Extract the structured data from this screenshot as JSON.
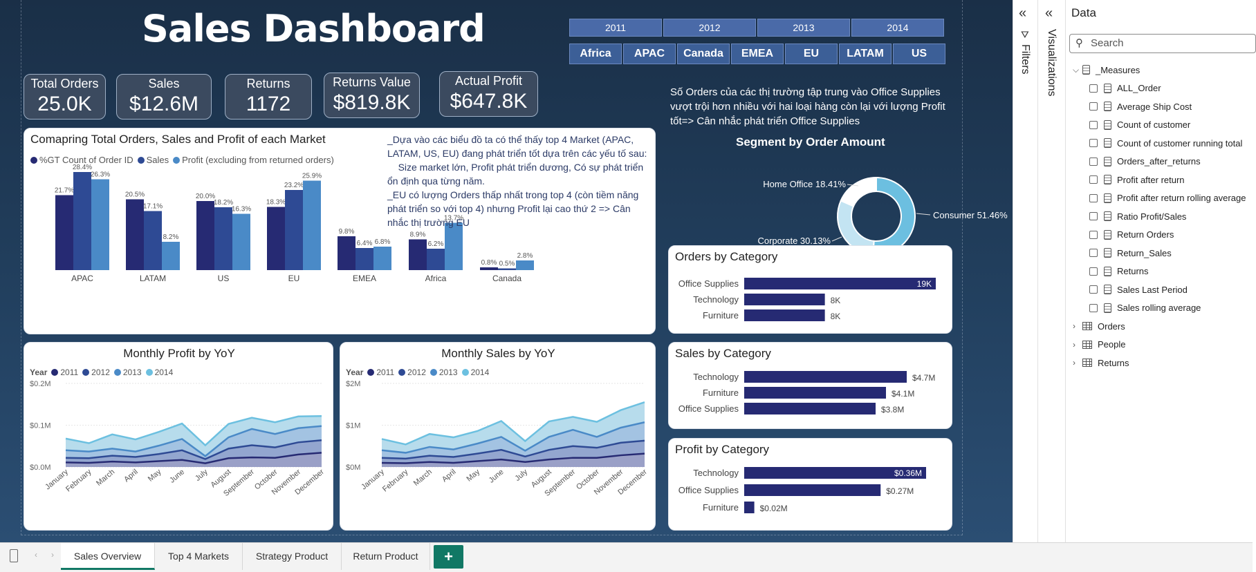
{
  "header": {
    "title": "Sales Dashboard"
  },
  "years": [
    "2011",
    "2012",
    "2013",
    "2014"
  ],
  "markets": [
    "Africa",
    "APAC",
    "Canada",
    "EMEA",
    "EU",
    "LATAM",
    "US"
  ],
  "kpis": [
    {
      "label": "Total Orders",
      "value": "25.0K"
    },
    {
      "label": "Sales",
      "value": "$12.6M"
    },
    {
      "label": "Returns",
      "value": "1172"
    },
    {
      "label": "Returns Value",
      "value": "$819.8K"
    },
    {
      "label": "Actual Profit",
      "value": "$647.8K"
    }
  ],
  "market_chart": {
    "title": "Comapring Total Orders, Sales and Profit of each Market",
    "note": "_Dựa vào các biểu đồ ta có thể thấy top 4 Market (APAC, LATAM, US, EU) đang phát triển tốt dựa trên các yếu tố sau:\n    Size market lớn, Profit phát triển dương, Có sự phát triển ổn định qua từng năm.\n_EU có lượng Orders thấp nhất trong top 4 (còn tiềm năng phát triển so với top 4) nhưng Profit lại cao thứ 2 => Cân nhắc thị trường EU"
  },
  "insight": "Số Orders của các thị trường tập trung vào Office Supplies vượt trội hơn nhiều với hai loại hàng còn lại với lượng Profit tốt=> Cân nhắc phát triển Office Supplies",
  "segment_title": "Segment by Order Amount",
  "profit_chart": {
    "title": "Monthly Profit by YoY",
    "legend_label": "Year"
  },
  "sales_chart": {
    "title": "Monthly Sales by YoY",
    "legend_label": "Year"
  },
  "orders_cat": {
    "title": "Orders by Category"
  },
  "sales_cat": {
    "title": "Sales by Category"
  },
  "profit_cat": {
    "title": "Profit by Category"
  },
  "colors": {
    "navy": "#262a73",
    "blue": "#2e4a94",
    "light": "#4a8ac7",
    "sky": "#6cc0e0"
  },
  "panes": {
    "filters": "Filters",
    "visualizations": "Visualizations",
    "data": "Data",
    "search_placeholder": "Search"
  },
  "data_tree": {
    "measures_table": "_Measures",
    "measures": [
      "ALL_Order",
      "Average Ship Cost",
      "Count of customer",
      "Count of customer running total",
      "Orders_after_returns",
      "Profit after return",
      "Profit after return rolling average",
      "Ratio Profit/Sales",
      "Return Orders",
      "Return_Sales",
      "Returns",
      "Sales Last Period",
      "Sales rolling average"
    ],
    "tables": [
      "Orders",
      "People",
      "Returns"
    ]
  },
  "tabs": [
    "Sales Overview",
    "Top 4 Markets",
    "Strategy Product",
    "Return Product"
  ],
  "add_tab": "+",
  "chart_data": [
    {
      "type": "bar",
      "categories": [
        "APAC",
        "LATAM",
        "US",
        "EU",
        "EMEA",
        "Africa",
        "Canada"
      ],
      "series": [
        {
          "name": "%GT Count of Order ID",
          "values": [
            21.7,
            20.5,
            20.0,
            18.3,
            9.8,
            8.9,
            0.8
          ],
          "labels": [
            "21.7%",
            "20.5%",
            "20.0%",
            "18.3%",
            "9.8%",
            "8.9%",
            "0.8%"
          ]
        },
        {
          "name": "Sales",
          "values": [
            28.4,
            17.1,
            18.2,
            23.2,
            6.4,
            6.2,
            0.5
          ],
          "labels": [
            "28.4%",
            "17.1%",
            "18.2%",
            "23.2%",
            "6.4%",
            "6.2%",
            "0.5%"
          ]
        },
        {
          "name": "Profit (excluding from returned orders)",
          "values": [
            26.3,
            8.2,
            16.3,
            25.9,
            6.8,
            13.7,
            2.8
          ],
          "labels": [
            "26.3%",
            "8.2%",
            "16.3%",
            "25.9%",
            "6.8%",
            "13.7%",
            "2.8%"
          ]
        }
      ]
    },
    {
      "type": "pie",
      "title": "Segment by Order Amount",
      "slices": [
        {
          "label": "Consumer",
          "value": 51.46,
          "text": "Consumer 51.46%"
        },
        {
          "label": "Corporate",
          "value": 30.13,
          "text": "Corporate 30.13%"
        },
        {
          "label": "Home Office",
          "value": 18.41,
          "text": "Home Office 18.41%"
        }
      ]
    },
    {
      "type": "area",
      "title": "Monthly Profit by YoY",
      "categories": [
        "January",
        "February",
        "March",
        "April",
        "May",
        "June",
        "July",
        "August",
        "September",
        "October",
        "November",
        "December"
      ],
      "ytick_labels": [
        "$0.0M",
        "$0.1M",
        "$0.2M"
      ],
      "ylim": [
        0,
        0.2
      ],
      "series": [
        {
          "name": "2011",
          "values": [
            0.011,
            0.01,
            0.013,
            0.011,
            0.014,
            0.017,
            0.009,
            0.021,
            0.023,
            0.022,
            0.03,
            0.034
          ]
        },
        {
          "name": "2012",
          "values": [
            0.011,
            0.011,
            0.014,
            0.013,
            0.017,
            0.023,
            0.01,
            0.023,
            0.029,
            0.025,
            0.029,
            0.03
          ]
        },
        {
          "name": "2013",
          "values": [
            0.018,
            0.016,
            0.017,
            0.013,
            0.02,
            0.027,
            0.007,
            0.027,
            0.039,
            0.032,
            0.034,
            0.034
          ]
        },
        {
          "name": "2014",
          "values": [
            0.028,
            0.02,
            0.034,
            0.029,
            0.033,
            0.037,
            0.026,
            0.032,
            0.027,
            0.028,
            0.028,
            0.024
          ]
        }
      ]
    },
    {
      "type": "area",
      "title": "Monthly Sales by YoY",
      "categories": [
        "January",
        "February",
        "March",
        "April",
        "May",
        "June",
        "July",
        "August",
        "September",
        "October",
        "November",
        "December"
      ],
      "ytick_labels": [
        "$0M",
        "$1M",
        "$2M"
      ],
      "ylim": [
        0,
        2
      ],
      "series": [
        {
          "name": "2011",
          "values": [
            0.1,
            0.09,
            0.12,
            0.1,
            0.14,
            0.18,
            0.12,
            0.18,
            0.22,
            0.22,
            0.28,
            0.32
          ]
        },
        {
          "name": "2012",
          "values": [
            0.12,
            0.11,
            0.15,
            0.14,
            0.18,
            0.23,
            0.13,
            0.23,
            0.28,
            0.24,
            0.3,
            0.31
          ]
        },
        {
          "name": "2013",
          "values": [
            0.18,
            0.14,
            0.21,
            0.18,
            0.24,
            0.31,
            0.14,
            0.31,
            0.39,
            0.26,
            0.36,
            0.44
          ]
        },
        {
          "name": "2014",
          "values": [
            0.27,
            0.2,
            0.31,
            0.29,
            0.3,
            0.38,
            0.23,
            0.37,
            0.31,
            0.36,
            0.42,
            0.48
          ]
        }
      ]
    },
    {
      "type": "bar",
      "title": "Orders by Category",
      "categories": [
        "Office Supplies",
        "Technology",
        "Furniture"
      ],
      "values": [
        19000,
        8000,
        8000
      ],
      "labels": [
        "19K",
        "8K",
        "8K"
      ]
    },
    {
      "type": "bar",
      "title": "Sales by Category",
      "categories": [
        "Technology",
        "Furniture",
        "Office Supplies"
      ],
      "values": [
        4.7,
        4.1,
        3.8
      ],
      "labels": [
        "$4.7M",
        "$4.1M",
        "$3.8M"
      ]
    },
    {
      "type": "bar",
      "title": "Profit by Category",
      "categories": [
        "Technology",
        "Office Supplies",
        "Furniture"
      ],
      "values": [
        0.36,
        0.27,
        0.02
      ],
      "labels": [
        "$0.36M",
        "$0.27M",
        "$0.02M"
      ]
    }
  ]
}
